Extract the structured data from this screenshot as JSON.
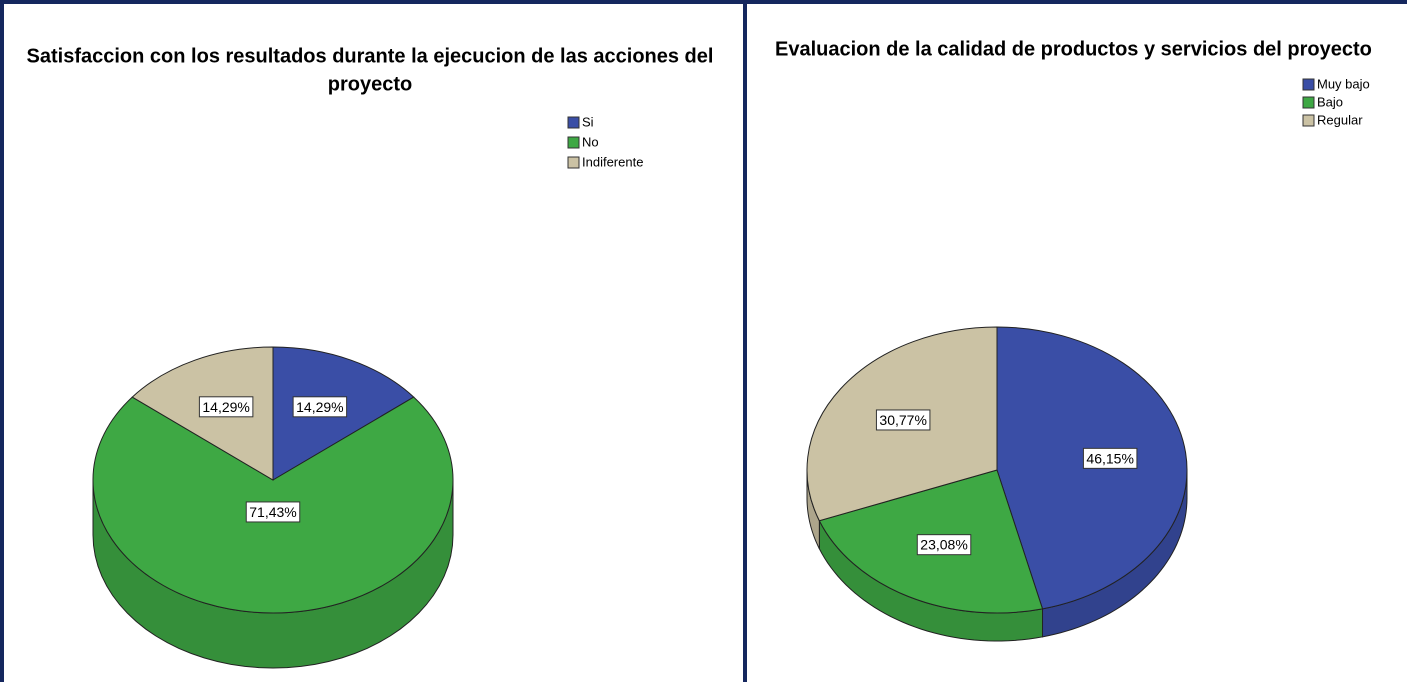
{
  "chart_data": [
    {
      "type": "pie",
      "title": [
        "Satisfaccion con los resultados durante la ejecucion de las acciones del",
        "proyecto"
      ],
      "categories": [
        "Si",
        "No",
        "Indiferente"
      ],
      "values": [
        14.29,
        71.43,
        14.29
      ],
      "value_labels": [
        "14,29%",
        "71,43%",
        "14,29%"
      ],
      "colors": [
        "#3a4ea6",
        "#3ea844",
        "#cbc2a4"
      ]
    },
    {
      "type": "pie",
      "title": [
        "Evaluacion de la calidad de productos y servicios del proyecto"
      ],
      "categories": [
        "Muy bajo",
        "Bajo",
        "Regular"
      ],
      "values": [
        46.15,
        23.08,
        30.77
      ],
      "value_labels": [
        "46,15%",
        "23,08%",
        "30,77%"
      ],
      "colors": [
        "#3a4ea6",
        "#3ea844",
        "#cbc2a4"
      ]
    }
  ]
}
